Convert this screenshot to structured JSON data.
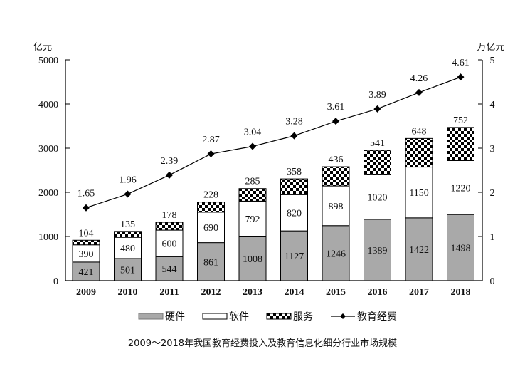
{
  "chart_data": {
    "type": "bar",
    "title": "2009～2018年我国教育经费投入及教育信息化细分行业市场规模",
    "categories": [
      "2009",
      "2010",
      "2011",
      "2012",
      "2013",
      "2014",
      "2015",
      "2016",
      "2017",
      "2018"
    ],
    "left_axis": {
      "unit": "亿元",
      "range": [
        0,
        5000
      ],
      "ticks": [
        "0",
        "1000",
        "2000",
        "3000",
        "4000",
        "5000"
      ]
    },
    "right_axis": {
      "unit": "万亿元",
      "range": [
        0,
        5
      ],
      "ticks": [
        "0",
        "1",
        "2",
        "3",
        "4",
        "5"
      ]
    },
    "stacked": true,
    "series": [
      {
        "name": "硬件",
        "type": "bar",
        "axis": "left",
        "fill": "#a9a9a9",
        "values": [
          421,
          501,
          544,
          861,
          1008,
          1127,
          1246,
          1389,
          1422,
          1498
        ]
      },
      {
        "name": "软件",
        "type": "bar",
        "axis": "left",
        "fill": "#ffffff",
        "values": [
          390,
          480,
          600,
          690,
          792,
          820,
          898,
          1020,
          1150,
          1220
        ]
      },
      {
        "name": "服务",
        "type": "bar",
        "axis": "left",
        "fill": "checkerboard",
        "values": [
          104,
          135,
          178,
          228,
          285,
          358,
          436,
          541,
          648,
          752
        ]
      },
      {
        "name": "教育经费",
        "type": "line",
        "axis": "right",
        "marker": "diamond",
        "values": [
          1.65,
          1.96,
          2.39,
          2.87,
          3.04,
          3.28,
          3.61,
          3.89,
          4.26,
          4.61
        ]
      }
    ],
    "legend_position": "bottom",
    "grid": false
  }
}
